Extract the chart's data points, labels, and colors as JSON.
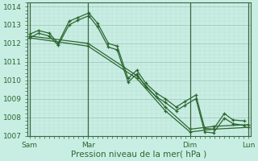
{
  "xlabel": "Pression niveau de la mer( hPa )",
  "ylim": [
    1007,
    1014.2
  ],
  "yticks": [
    1007,
    1008,
    1009,
    1010,
    1011,
    1012,
    1013,
    1014
  ],
  "bg_color": "#c8eee4",
  "grid_major_color": "#9dbfb5",
  "grid_minor_color": "#b8ddd5",
  "line_color": "#2d6630",
  "vline_color": "#3a6640",
  "xtick_labels": [
    "Sam",
    "Mar",
    "Dim",
    "Lun"
  ],
  "xtick_positions": [
    0.0,
    0.267,
    0.733,
    1.0
  ],
  "series": [
    {
      "x": [
        0.0,
        0.04,
        0.09,
        0.13,
        0.18,
        0.22,
        0.27,
        0.31,
        0.36,
        0.4,
        0.45,
        0.49,
        0.53,
        0.58,
        0.62,
        0.67,
        0.71,
        0.76,
        0.8,
        0.84,
        0.89,
        0.93,
        0.98
      ],
      "y": [
        1012.5,
        1012.7,
        1012.55,
        1012.0,
        1013.2,
        1013.4,
        1013.65,
        1013.1,
        1012.0,
        1011.85,
        1010.1,
        1010.55,
        1009.85,
        1009.3,
        1009.0,
        1008.55,
        1008.85,
        1009.2,
        1007.4,
        1007.35,
        1008.2,
        1007.85,
        1007.8
      ]
    },
    {
      "x": [
        0.0,
        0.04,
        0.09,
        0.13,
        0.18,
        0.22,
        0.27,
        0.31,
        0.36,
        0.4,
        0.45,
        0.49,
        0.53,
        0.58,
        0.62,
        0.67,
        0.71,
        0.76,
        0.8,
        0.84,
        0.89,
        0.93,
        0.98
      ],
      "y": [
        1012.3,
        1012.55,
        1012.4,
        1011.9,
        1013.0,
        1013.25,
        1013.5,
        1012.9,
        1011.8,
        1011.65,
        1009.9,
        1010.35,
        1009.65,
        1009.1,
        1008.8,
        1008.35,
        1008.65,
        1009.0,
        1007.2,
        1007.15,
        1007.95,
        1007.65,
        1007.55
      ]
    },
    {
      "x": [
        0.0,
        0.267,
        0.49,
        0.62,
        0.733,
        0.84,
        1.0
      ],
      "y": [
        1012.4,
        1012.0,
        1010.25,
        1008.55,
        1007.35,
        1007.5,
        1007.6
      ]
    },
    {
      "x": [
        0.0,
        0.267,
        0.49,
        0.62,
        0.733,
        0.84,
        1.0
      ],
      "y": [
        1012.3,
        1011.85,
        1010.1,
        1008.35,
        1007.2,
        1007.35,
        1007.45
      ]
    }
  ],
  "vlines": [
    0.0,
    0.267,
    0.733,
    1.0
  ],
  "figsize": [
    3.2,
    2.0
  ],
  "dpi": 100
}
